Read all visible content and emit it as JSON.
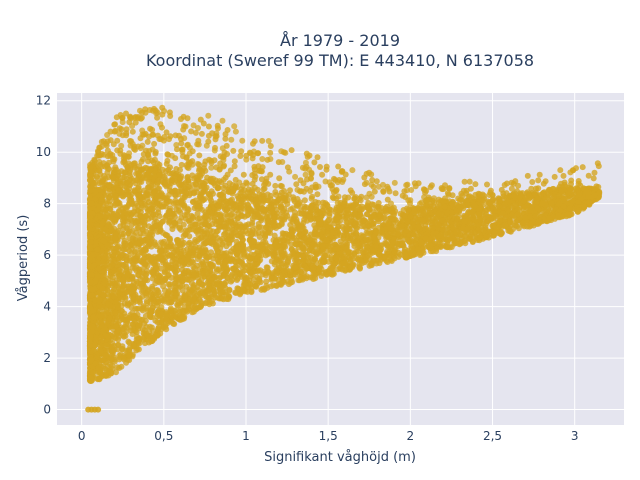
{
  "chart_data": {
    "type": "scatter",
    "title_line1": "År 1979 - 2019",
    "title_line2": "Koordinat (Sweref 99 TM): E 443410, N 6137058",
    "xlabel": "Signifikant våghöjd (m)",
    "ylabel": "Vågperiod (s)",
    "xlim": [
      -0.15,
      3.3
    ],
    "ylim": [
      -0.6,
      12.3
    ],
    "xticks": [
      0,
      0.5,
      1,
      1.5,
      2,
      2.5,
      3
    ],
    "xtick_labels": [
      "0",
      "0,5",
      "1",
      "1,5",
      "2",
      "2,5",
      "3"
    ],
    "yticks": [
      0,
      2,
      4,
      6,
      8,
      10,
      12
    ],
    "ytick_labels": [
      "0",
      "2",
      "4",
      "6",
      "8",
      "10",
      "12"
    ],
    "grid": true,
    "legend": "none",
    "colors": {
      "marker": "#D4A520",
      "plot_background": "#E5E5EF",
      "grid": "#ffffff",
      "text": "#2a3f5f"
    },
    "point_cloud": {
      "lower_envelope": [
        [
          0.05,
          1.1
        ],
        [
          0.2,
          1.3
        ],
        [
          0.3,
          2.0
        ],
        [
          0.5,
          3.0
        ],
        [
          0.75,
          4.0
        ],
        [
          1.0,
          4.5
        ],
        [
          1.5,
          5.2
        ],
        [
          2.0,
          5.9
        ],
        [
          2.5,
          6.7
        ],
        [
          3.0,
          7.6
        ],
        [
          3.15,
          8.2
        ]
      ],
      "upper_envelope": [
        [
          0.05,
          9.5
        ],
        [
          0.2,
          11.5
        ],
        [
          0.5,
          11.8
        ],
        [
          0.8,
          11.4
        ],
        [
          1.2,
          10.3
        ],
        [
          1.6,
          9.6
        ],
        [
          2.0,
          8.8
        ],
        [
          2.5,
          8.9
        ],
        [
          3.0,
          9.4
        ],
        [
          3.15,
          9.7
        ]
      ],
      "dense_core_upper": [
        [
          0.05,
          8.0
        ],
        [
          0.3,
          9.5
        ],
        [
          0.8,
          8.8
        ],
        [
          1.5,
          8.0
        ],
        [
          2.0,
          7.8
        ],
        [
          2.5,
          8.2
        ],
        [
          3.0,
          8.6
        ]
      ],
      "zero_period_points": [
        [
          0.04,
          0
        ],
        [
          0.06,
          0
        ],
        [
          0.08,
          0
        ],
        [
          0.1,
          0
        ]
      ]
    }
  }
}
